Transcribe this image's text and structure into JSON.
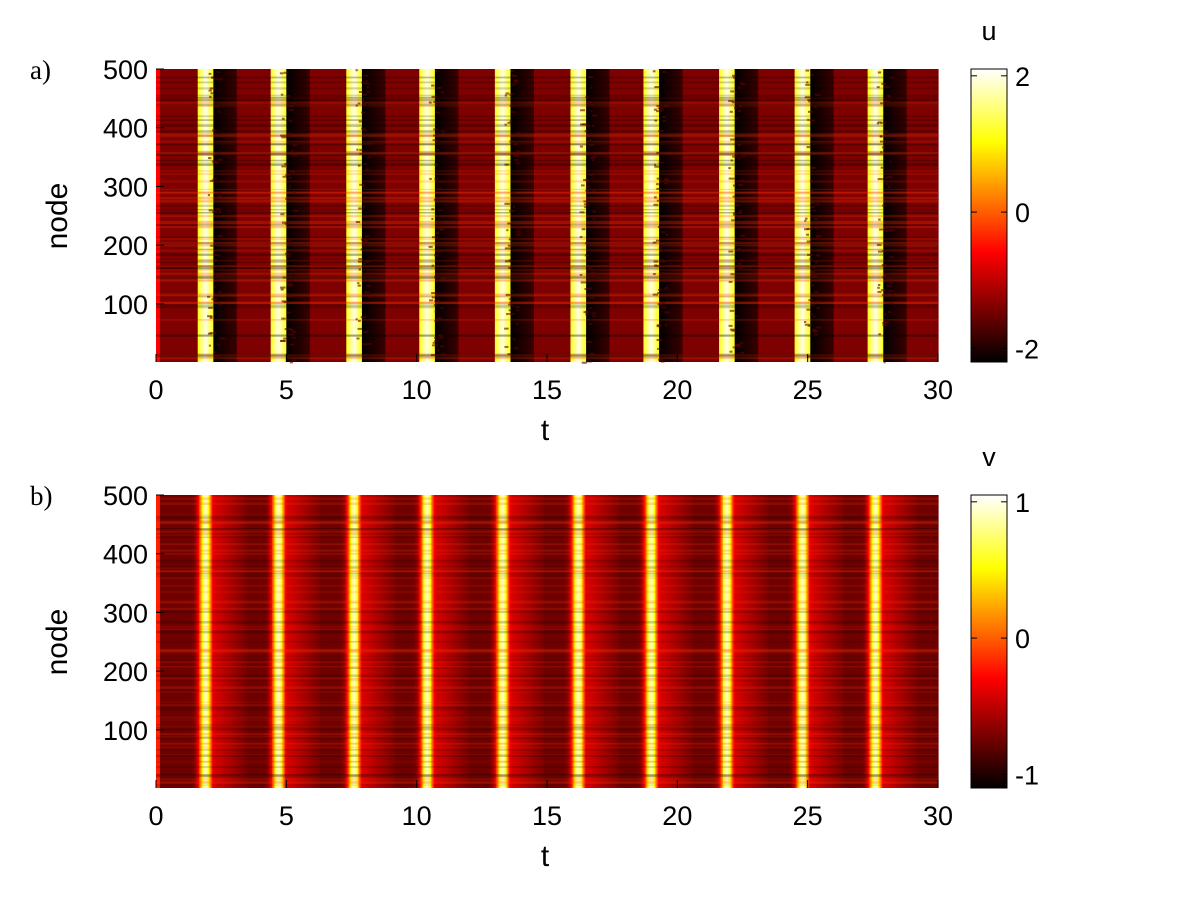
{
  "chart_data": [
    {
      "type": "heatmap",
      "panel_label": "a)",
      "variable": "u",
      "xlabel": "t",
      "ylabel": "node",
      "xlim": [
        0,
        30
      ],
      "ylim": [
        1,
        500
      ],
      "xticks": [
        0,
        5,
        10,
        15,
        20,
        25,
        30
      ],
      "yticks": [
        100,
        200,
        300,
        400,
        500
      ],
      "colorbar": {
        "label": "u",
        "range": [
          -2.2,
          2.1
        ],
        "ticks": [
          -2,
          0,
          2
        ]
      },
      "colormap": "hot",
      "nodes": 500,
      "spike_times": [
        1.9,
        4.7,
        7.6,
        10.4,
        13.3,
        16.2,
        19.0,
        21.9,
        24.8,
        27.6
      ],
      "peak_value": 2.0,
      "rest_value": -1.4,
      "min_value": -2.2
    },
    {
      "type": "heatmap",
      "panel_label": "b)",
      "variable": "v",
      "xlabel": "t",
      "ylabel": "node",
      "xlim": [
        0,
        30
      ],
      "ylim": [
        1,
        500
      ],
      "xticks": [
        0,
        5,
        10,
        15,
        20,
        25,
        30
      ],
      "yticks": [
        100,
        200,
        300,
        400,
        500
      ],
      "colorbar": {
        "label": "v",
        "range": [
          -1.1,
          1.05
        ],
        "ticks": [
          -1,
          0,
          1
        ]
      },
      "colormap": "hot",
      "nodes": 500,
      "spike_times": [
        1.9,
        4.7,
        7.6,
        10.4,
        13.3,
        16.2,
        19.0,
        21.9,
        24.8,
        27.6
      ],
      "peak_value": 0.9,
      "min_value": -1.0
    }
  ]
}
